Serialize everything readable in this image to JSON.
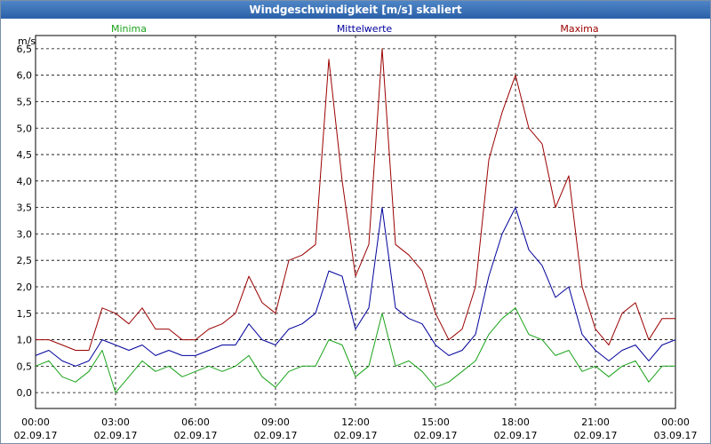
{
  "window": {
    "title": "Windgeschwindigkeit [m/s] skaliert"
  },
  "chart_data": {
    "type": "line",
    "title": "Windgeschwindigkeit [m/s] skaliert",
    "ylabel": "m/s",
    "xlabel": "",
    "ylim": [
      -0.3,
      6.75
    ],
    "xlim": [
      0,
      24
    ],
    "grid": true,
    "y_ticks": [
      0.0,
      0.5,
      1.0,
      1.5,
      2.0,
      2.5,
      3.0,
      3.5,
      4.0,
      4.5,
      5.0,
      5.5,
      6.0,
      6.5
    ],
    "y_tick_labels": [
      "0,0",
      "0,5",
      "1,0",
      "1,5",
      "2,0",
      "2,5",
      "3,0",
      "3,5",
      "4,0",
      "4,5",
      "5,0",
      "5,5",
      "6,0",
      "6,5"
    ],
    "x_ticks": [
      0,
      3,
      6,
      9,
      12,
      15,
      18,
      21,
      24
    ],
    "x_tick_times": [
      "00:00",
      "03:00",
      "06:00",
      "09:00",
      "12:00",
      "15:00",
      "18:00",
      "21:00",
      "00:00"
    ],
    "x_tick_dates": [
      "02.09.17",
      "02.09.17",
      "02.09.17",
      "02.09.17",
      "02.09.17",
      "02.09.17",
      "02.09.17",
      "02.09.17",
      "03.09.17"
    ],
    "legend": [
      "Minima",
      "Mittelwerte",
      "Maxima"
    ],
    "series": [
      {
        "name": "Maxima",
        "color": "#9b0000",
        "x": [
          0,
          0.5,
          1,
          1.5,
          2,
          2.5,
          3,
          3.5,
          4,
          4.5,
          5,
          5.5,
          6,
          6.5,
          7,
          7.5,
          8,
          8.5,
          9,
          9.5,
          10,
          10.5,
          11,
          11.5,
          12,
          12.5,
          13,
          13.5,
          14,
          14.5,
          15,
          15.5,
          16,
          16.5,
          17,
          17.5,
          18,
          18.5,
          19,
          19.5,
          20,
          20.5,
          21,
          21.5,
          22,
          22.5,
          23,
          23.5,
          24
        ],
        "values": [
          1.0,
          1.0,
          0.9,
          0.8,
          0.8,
          1.6,
          1.5,
          1.3,
          1.6,
          1.2,
          1.2,
          1.0,
          1.0,
          1.2,
          1.3,
          1.5,
          2.2,
          1.7,
          1.5,
          2.5,
          2.6,
          2.8,
          6.3,
          4.0,
          2.2,
          2.8,
          6.5,
          2.8,
          2.6,
          2.3,
          1.5,
          1.0,
          1.2,
          2.0,
          4.4,
          5.3,
          6.0,
          5.0,
          4.7,
          3.5,
          4.1,
          2.0,
          1.2,
          0.9,
          1.5,
          1.7,
          1.0,
          1.4,
          1.4
        ]
      },
      {
        "name": "Mittelwerte",
        "color": "#00009b",
        "x": [
          0,
          0.5,
          1,
          1.5,
          2,
          2.5,
          3,
          3.5,
          4,
          4.5,
          5,
          5.5,
          6,
          6.5,
          7,
          7.5,
          8,
          8.5,
          9,
          9.5,
          10,
          10.5,
          11,
          11.5,
          12,
          12.5,
          13,
          13.5,
          14,
          14.5,
          15,
          15.5,
          16,
          16.5,
          17,
          17.5,
          18,
          18.5,
          19,
          19.5,
          20,
          20.5,
          21,
          21.5,
          22,
          22.5,
          23,
          23.5,
          24
        ],
        "values": [
          0.7,
          0.8,
          0.6,
          0.5,
          0.6,
          1.0,
          0.9,
          0.8,
          0.9,
          0.7,
          0.8,
          0.7,
          0.7,
          0.8,
          0.9,
          0.9,
          1.3,
          1.0,
          0.9,
          1.2,
          1.3,
          1.5,
          2.3,
          2.2,
          1.2,
          1.6,
          3.5,
          1.6,
          1.4,
          1.3,
          0.9,
          0.7,
          0.8,
          1.1,
          2.2,
          3.0,
          3.5,
          2.7,
          2.4,
          1.8,
          2.0,
          1.1,
          0.8,
          0.6,
          0.8,
          0.9,
          0.6,
          0.9,
          1.0
        ]
      },
      {
        "name": "Minima",
        "color": "#1aa31a",
        "x": [
          0,
          0.5,
          1,
          1.5,
          2,
          2.5,
          3,
          3.5,
          4,
          4.5,
          5,
          5.5,
          6,
          6.5,
          7,
          7.5,
          8,
          8.5,
          9,
          9.5,
          10,
          10.5,
          11,
          11.5,
          12,
          12.5,
          13,
          13.5,
          14,
          14.5,
          15,
          15.5,
          16,
          16.5,
          17,
          17.5,
          18,
          18.5,
          19,
          19.5,
          20,
          20.5,
          21,
          21.5,
          22,
          22.5,
          23,
          23.5,
          24
        ],
        "values": [
          0.5,
          0.6,
          0.3,
          0.2,
          0.4,
          0.8,
          0.0,
          0.3,
          0.6,
          0.4,
          0.5,
          0.3,
          0.4,
          0.5,
          0.4,
          0.5,
          0.7,
          0.3,
          0.1,
          0.4,
          0.5,
          0.5,
          1.0,
          0.9,
          0.3,
          0.5,
          1.5,
          0.5,
          0.6,
          0.4,
          0.1,
          0.2,
          0.4,
          0.6,
          1.1,
          1.4,
          1.6,
          1.1,
          1.0,
          0.7,
          0.8,
          0.4,
          0.5,
          0.3,
          0.5,
          0.6,
          0.2,
          0.5,
          0.5
        ]
      }
    ]
  }
}
